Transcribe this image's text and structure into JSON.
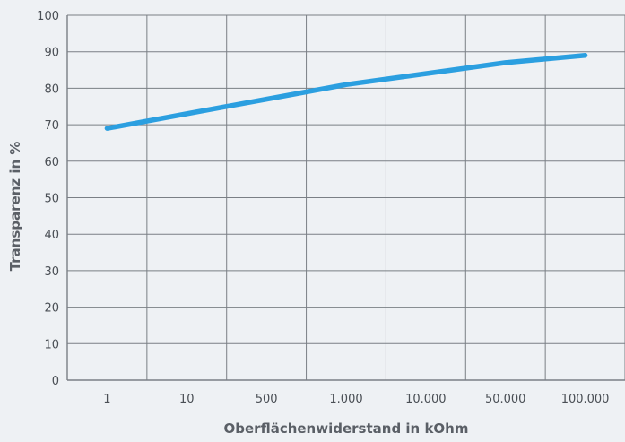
{
  "chart_data": {
    "type": "line",
    "title": "",
    "xlabel": "Oberflächenwiderstand in kOhm",
    "ylabel": "Transparenz in %",
    "categories": [
      "1",
      "10",
      "500",
      "1.000",
      "10.000",
      "50.000",
      "100.000"
    ],
    "y_ticks": [
      "0",
      "10",
      "20",
      "30",
      "40",
      "50",
      "60",
      "70",
      "80",
      "90",
      "100"
    ],
    "ylim": [
      0,
      100
    ],
    "grid": true,
    "legend": "none",
    "series": [
      {
        "values": [
          69,
          73,
          77,
          81,
          84,
          87,
          89
        ],
        "color": "#2b9fe0"
      }
    ],
    "colors": {
      "grid": "#7a7f85",
      "line": "#2b9fe0",
      "background": "#eef1f4"
    }
  }
}
